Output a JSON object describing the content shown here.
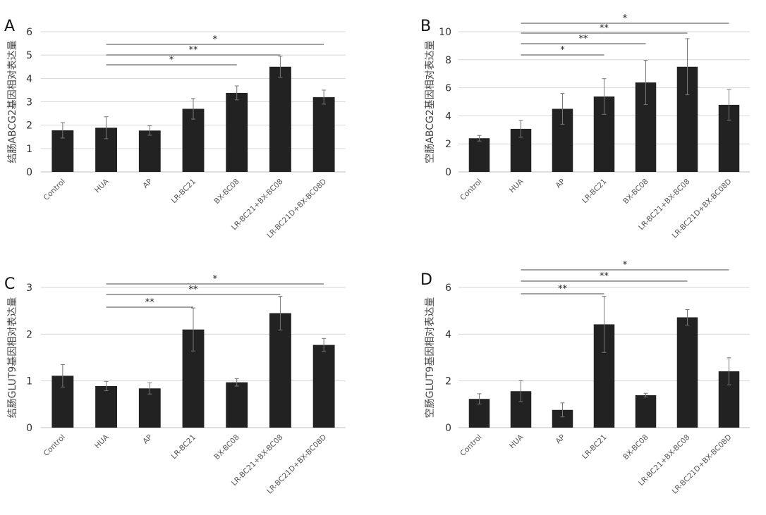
{
  "chart_data": [
    {
      "type": "bar",
      "panel": "A",
      "ylabel": "结肠ABCG2基因相对表达量",
      "ylim": [
        0,
        6
      ],
      "yticks": [
        0,
        1,
        2,
        3,
        4,
        5,
        6
      ],
      "grid": true,
      "categories": [
        "Control",
        "HUA",
        "AP",
        "LR-BC21",
        "BX-BC08",
        "LR-BC21+BX-BC08",
        "LR-BC21D+BX-BC08D"
      ],
      "values": [
        1.78,
        1.89,
        1.77,
        2.7,
        3.38,
        4.5,
        3.2
      ],
      "errors": [
        0.33,
        0.47,
        0.2,
        0.44,
        0.3,
        0.45,
        0.3
      ],
      "significance": [
        {
          "from": 1,
          "to": 4,
          "label": "*"
        },
        {
          "from": 1,
          "to": 5,
          "label": "**"
        },
        {
          "from": 1,
          "to": 6,
          "label": "*"
        }
      ]
    },
    {
      "type": "bar",
      "panel": "B",
      "ylabel": "空肠ABCG2基因相对表达量",
      "ylim": [
        0,
        10
      ],
      "yticks": [
        0,
        2,
        4,
        6,
        8,
        10
      ],
      "grid": true,
      "categories": [
        "Control",
        "HUA",
        "AP",
        "LR-BC21",
        "BX-BC08",
        "LR-BC21+BX-BC08",
        "LR-BC21D+BX-BC08D"
      ],
      "values": [
        2.4,
        3.07,
        4.5,
        5.38,
        6.38,
        7.5,
        4.78
      ],
      "errors": [
        0.2,
        0.6,
        1.1,
        1.27,
        1.58,
        2.0,
        1.1
      ],
      "significance": [
        {
          "from": 1,
          "to": 3,
          "label": "*"
        },
        {
          "from": 1,
          "to": 4,
          "label": "**"
        },
        {
          "from": 1,
          "to": 5,
          "label": "**"
        },
        {
          "from": 1,
          "to": 6,
          "label": "*"
        }
      ]
    },
    {
      "type": "bar",
      "panel": "C",
      "ylabel": "结肠GLUT9基因相对表达量",
      "ylim": [
        0,
        3
      ],
      "yticks": [
        0,
        1,
        2,
        3
      ],
      "grid": true,
      "categories": [
        "Control",
        "HUA",
        "AP",
        "LR-BC21",
        "BX-BC08",
        "LR-BC21+BX-BC08",
        "LR-BC21D+BX-BC08D"
      ],
      "values": [
        1.11,
        0.89,
        0.84,
        2.1,
        0.97,
        2.45,
        1.77
      ],
      "errors": [
        0.24,
        0.1,
        0.12,
        0.46,
        0.08,
        0.36,
        0.14
      ],
      "significance": [
        {
          "from": 1,
          "to": 3,
          "label": "**"
        },
        {
          "from": 1,
          "to": 5,
          "label": "**"
        },
        {
          "from": 1,
          "to": 6,
          "label": "*"
        }
      ]
    },
    {
      "type": "bar",
      "panel": "D",
      "ylabel": "空肠GLUT9基因相对表达量",
      "ylim": [
        0,
        6
      ],
      "yticks": [
        0,
        2,
        4,
        6
      ],
      "grid": true,
      "categories": [
        "Control",
        "HUA",
        "AP",
        "LR-BC21",
        "BX-BC08",
        "LR-BC21+BX-BC08",
        "LR-BC21D+BX-BC08D"
      ],
      "values": [
        1.23,
        1.56,
        0.76,
        4.42,
        1.39,
        4.72,
        2.41
      ],
      "errors": [
        0.22,
        0.45,
        0.3,
        1.2,
        0.08,
        0.33,
        0.58
      ],
      "significance": [
        {
          "from": 1,
          "to": 3,
          "label": "**"
        },
        {
          "from": 1,
          "to": 5,
          "label": "**"
        },
        {
          "from": 1,
          "to": 6,
          "label": "*"
        }
      ]
    }
  ],
  "colors": {
    "bar": "#222222",
    "grid": "#d6d6d6",
    "error": "#777777",
    "sig_line": "#444444"
  }
}
